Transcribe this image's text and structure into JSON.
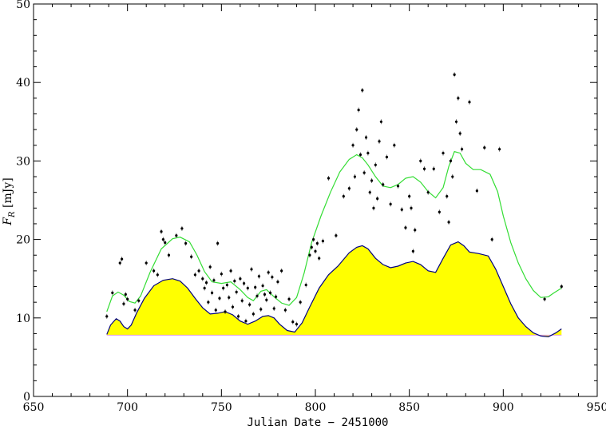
{
  "chart_data": {
    "type": "scatter",
    "title": "",
    "xlabel": "Julian Date − 2451000",
    "ylabel": {
      "main": "F",
      "sub": "R",
      "unit": " [mJy]"
    },
    "xlim": [
      650,
      950
    ],
    "ylim": [
      0,
      50
    ],
    "x_ticks": [
      650,
      700,
      750,
      800,
      850,
      900,
      950
    ],
    "y_ticks": [
      0,
      10,
      20,
      30,
      40,
      50
    ],
    "grid": false,
    "colors": {
      "points": "#000000",
      "upper_curve": "#33dd33",
      "lower_curve": "#000080",
      "fill": "#ffff00",
      "axes": "#000000"
    },
    "upper_curve": {
      "x": [
        689,
        692,
        695,
        698,
        701,
        704,
        707,
        712,
        718,
        724,
        728,
        733,
        737,
        741,
        745,
        750,
        755,
        760,
        764,
        767,
        771,
        774,
        778,
        782,
        786,
        790,
        794,
        798,
        803,
        808,
        813,
        818,
        822,
        825,
        828,
        832,
        836,
        840,
        844,
        848,
        852,
        856,
        860,
        864,
        868,
        871,
        874,
        877,
        880,
        884,
        888,
        893,
        897,
        900,
        904,
        908,
        912,
        916,
        920,
        924,
        927,
        931
      ],
      "y": [
        10.8,
        12.8,
        13.3,
        12.9,
        12.1,
        11.9,
        12.8,
        15.8,
        18.8,
        20.1,
        20.3,
        19.7,
        18.0,
        15.9,
        14.6,
        14.4,
        14.6,
        13.6,
        12.6,
        12.2,
        13.4,
        13.6,
        12.7,
        11.9,
        11.6,
        12.6,
        15.7,
        19.6,
        23.0,
        26.0,
        28.6,
        30.2,
        30.8,
        30.4,
        29.5,
        28.0,
        26.8,
        26.6,
        27.0,
        27.8,
        28.0,
        27.3,
        26.1,
        25.3,
        26.6,
        29.3,
        31.2,
        31.0,
        29.7,
        28.9,
        28.9,
        28.3,
        26.1,
        23.0,
        19.6,
        17.0,
        15.0,
        13.5,
        12.6,
        12.7,
        13.2,
        13.8
      ]
    },
    "lower_curve": {
      "x": [
        689,
        691,
        694,
        696,
        698,
        700,
        702,
        705,
        709,
        714,
        719,
        724,
        728,
        732,
        736,
        740,
        744,
        748,
        752,
        756,
        760,
        764,
        768,
        772,
        775,
        778,
        781,
        785,
        789,
        793,
        797,
        802,
        807,
        812,
        818,
        822,
        825,
        828,
        832,
        836,
        840,
        844,
        848,
        852,
        856,
        860,
        864,
        868,
        872,
        876,
        879,
        882,
        887,
        892,
        896,
        900,
        904,
        908,
        912,
        916,
        920,
        924,
        928,
        931
      ],
      "y": [
        7.9,
        9.1,
        9.9,
        9.6,
        8.9,
        8.6,
        9.1,
        10.7,
        12.5,
        14.1,
        14.8,
        15.0,
        14.7,
        13.8,
        12.5,
        11.3,
        10.5,
        10.6,
        10.8,
        10.4,
        9.6,
        9.2,
        9.6,
        10.2,
        10.3,
        10.0,
        9.2,
        8.4,
        8.2,
        9.4,
        11.4,
        13.8,
        15.5,
        16.6,
        18.3,
        19.0,
        19.2,
        18.8,
        17.6,
        16.8,
        16.4,
        16.6,
        17.0,
        17.2,
        16.8,
        16.0,
        15.8,
        17.6,
        19.3,
        19.7,
        19.2,
        18.4,
        18.2,
        17.9,
        16.2,
        14.0,
        11.8,
        10.0,
        8.9,
        8.1,
        7.7,
        7.6,
        8.1,
        8.6
      ]
    },
    "baseline": {
      "x": [
        689,
        931
      ],
      "y": 7.8
    },
    "points": {
      "x": [
        689,
        692,
        696,
        697,
        698,
        699,
        700,
        704,
        706,
        710,
        714,
        716,
        718,
        719,
        720,
        722,
        726,
        729,
        731,
        734,
        736,
        738,
        740,
        741,
        742,
        743,
        744,
        745,
        746,
        747,
        748,
        749,
        750,
        751,
        752,
        753,
        754,
        755,
        756,
        757,
        758,
        759,
        760,
        761,
        762,
        763,
        764,
        765,
        766,
        767,
        768,
        769,
        770,
        771,
        772,
        773,
        774,
        775,
        776,
        777,
        778,
        779,
        780,
        782,
        784,
        786,
        788,
        790,
        792,
        795,
        797,
        798,
        799,
        800,
        801,
        802,
        804,
        807,
        811,
        815,
        818,
        820,
        821,
        822,
        823,
        824,
        825,
        826,
        827,
        828,
        829,
        830,
        831,
        832,
        833,
        834,
        835,
        836,
        838,
        840,
        842,
        844,
        846,
        848,
        850,
        851,
        852,
        853,
        856,
        858,
        860,
        863,
        866,
        868,
        870,
        871,
        872,
        873,
        874,
        875,
        876,
        877,
        878,
        882,
        886,
        890,
        894,
        898,
        922,
        931
      ],
      "y": [
        10.2,
        13.2,
        17.0,
        17.5,
        11.8,
        13.0,
        12.4,
        11.0,
        12.2,
        17.0,
        16.0,
        15.5,
        21.0,
        20.0,
        19.6,
        18.0,
        20.5,
        21.4,
        19.5,
        17.8,
        15.5,
        16.0,
        15.0,
        13.8,
        14.5,
        12.0,
        16.5,
        13.2,
        14.8,
        11.0,
        19.5,
        12.5,
        15.6,
        13.8,
        10.8,
        14.2,
        12.6,
        16.0,
        11.4,
        14.7,
        13.3,
        10.2,
        15.0,
        12.2,
        14.4,
        9.6,
        13.8,
        11.7,
        16.2,
        10.5,
        13.9,
        12.8,
        15.3,
        11.1,
        14.1,
        13.0,
        12.3,
        15.8,
        13.2,
        15.2,
        11.2,
        12.7,
        14.6,
        16.0,
        11.0,
        12.4,
        9.5,
        9.2,
        12.0,
        14.2,
        18.0,
        19.0,
        20.0,
        18.5,
        19.5,
        17.6,
        19.8,
        27.8,
        20.5,
        25.5,
        26.5,
        32.0,
        28.0,
        34.0,
        36.5,
        30.8,
        39.0,
        28.5,
        33.0,
        31.0,
        26.0,
        27.5,
        24.0,
        29.5,
        25.2,
        32.5,
        35.0,
        27.0,
        30.5,
        24.5,
        32.0,
        26.8,
        23.8,
        21.5,
        25.5,
        24.0,
        18.5,
        21.2,
        30.0,
        29.0,
        26.0,
        29.0,
        23.5,
        31.0,
        25.5,
        22.2,
        30.0,
        28.0,
        41.0,
        35.0,
        38.0,
        33.5,
        31.5,
        37.5,
        26.2,
        31.7,
        20.0,
        31.5,
        12.4,
        14.0
      ]
    }
  }
}
